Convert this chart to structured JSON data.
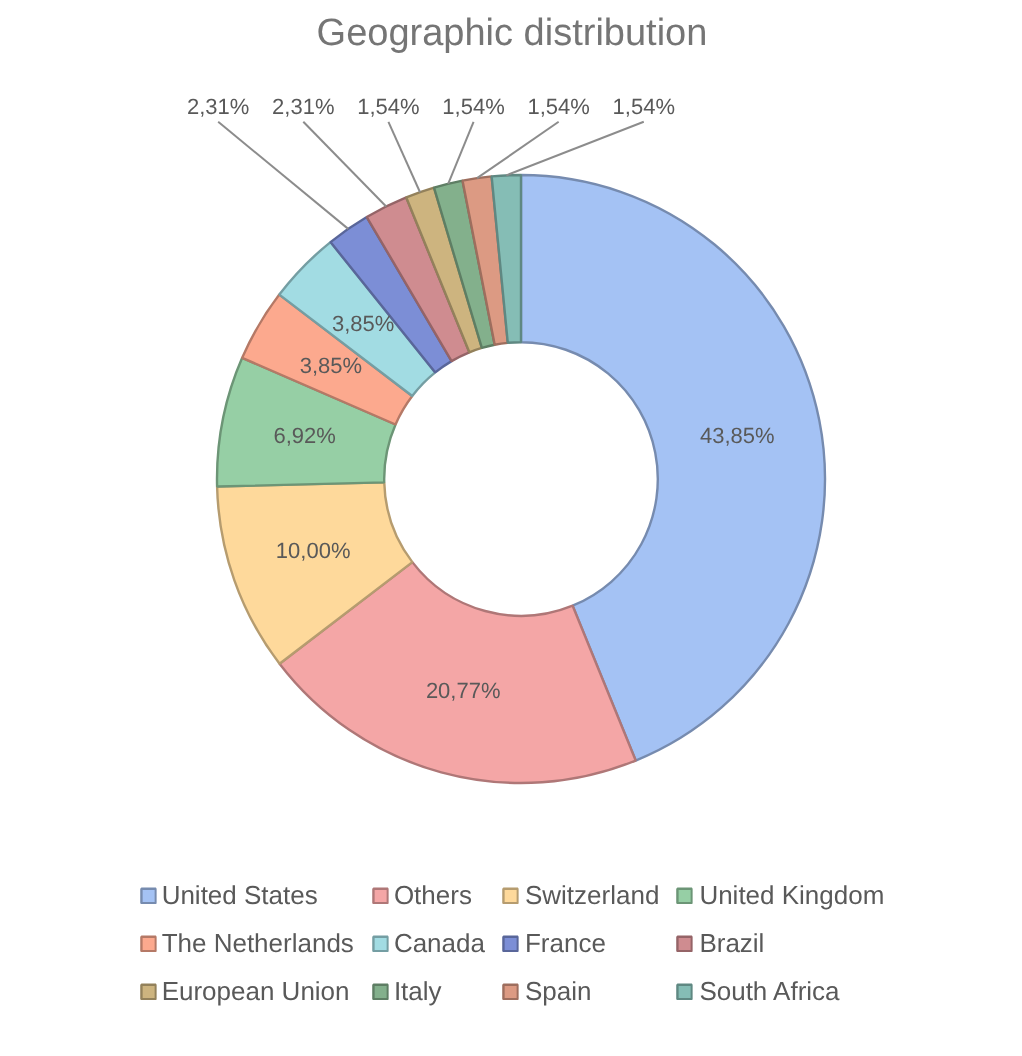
{
  "chart_data": {
    "type": "donut",
    "title": "Geographic distribution",
    "categories": [
      "United States",
      "Others",
      "Switzerland",
      "United Kingdom",
      "The Netherlands",
      "Canada",
      "France",
      "Brazil",
      "European Union",
      "Italy",
      "Spain",
      "South Africa"
    ],
    "values": [
      43.85,
      20.77,
      10.0,
      6.92,
      3.85,
      3.85,
      2.31,
      2.31,
      1.54,
      1.54,
      1.54,
      1.54
    ],
    "colors": [
      "#a4c2f4",
      "#f4a6a6",
      "#fed99b",
      "#96cfa5",
      "#fca98e",
      "#a2dce3",
      "#7c8ed6",
      "#cf8c90",
      "#cdb47f",
      "#83b08c",
      "#dc9a83",
      "#85bdb5"
    ],
    "value_labels": [
      "43,85%",
      "20,77%",
      "10,00%",
      "6,92%",
      "3,85%",
      "3,85%",
      "2,31%",
      "2,31%",
      "1,54%",
      "1,54%",
      "1,54%",
      "1,54%"
    ],
    "legend": "bottom"
  }
}
